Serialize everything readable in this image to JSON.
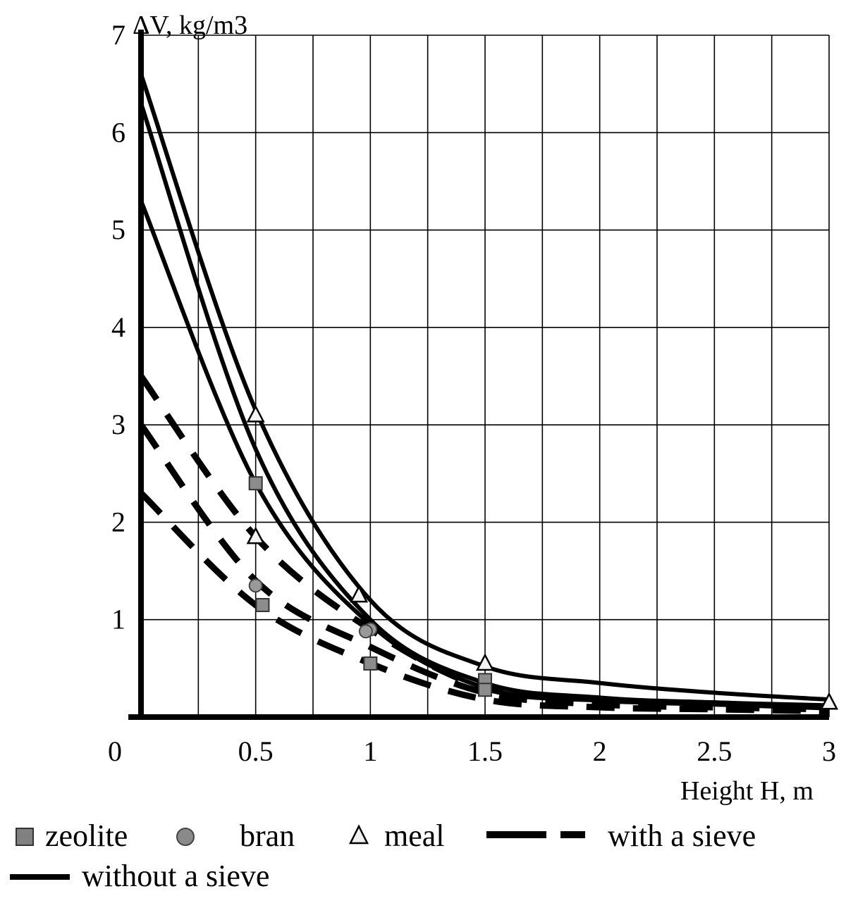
{
  "chart_data": {
    "type": "line",
    "title": "",
    "xlabel": "Height H, m",
    "ylabel": "ΔV, kg/m3",
    "xlim": [
      0,
      3
    ],
    "ylim": [
      0,
      7
    ],
    "grid": true,
    "x_ticks": [
      "0",
      "0.5",
      "1",
      "1.5",
      "2",
      "2.5",
      "3"
    ],
    "y_ticks": [
      "1",
      "2",
      "3",
      "4",
      "5",
      "6",
      "7"
    ],
    "legend_position": "bottom",
    "legend": {
      "zeolite": "zeolite",
      "bran": "bran",
      "meal": "meal",
      "with_sieve": "with a sieve",
      "without_sieve": "without a sieve"
    },
    "series": [
      {
        "name": "without a sieve",
        "material": "meal",
        "style": "solid",
        "x": [
          0,
          0.5,
          1,
          1.5,
          2,
          2.5,
          3
        ],
        "y": [
          6.6,
          3.15,
          1.2,
          0.52,
          0.35,
          0.25,
          0.18
        ]
      },
      {
        "name": "without a sieve",
        "material": "bran",
        "style": "solid",
        "x": [
          0,
          0.5,
          1,
          1.5,
          2,
          2.5,
          3
        ],
        "y": [
          6.3,
          2.75,
          1.0,
          0.35,
          0.2,
          0.15,
          0.12
        ]
      },
      {
        "name": "without a sieve",
        "material": "zeolite",
        "style": "solid",
        "x": [
          0,
          0.5,
          1,
          1.5,
          2,
          2.5,
          3
        ],
        "y": [
          5.3,
          2.4,
          0.95,
          0.3,
          0.18,
          0.13,
          0.1
        ]
      },
      {
        "name": "with a sieve",
        "material": "meal",
        "style": "dashed",
        "x": [
          0,
          0.5,
          1,
          1.5,
          2,
          2.5,
          3
        ],
        "y": [
          3.5,
          1.85,
          0.9,
          0.3,
          0.18,
          0.14,
          0.1
        ]
      },
      {
        "name": "with a sieve",
        "material": "bran",
        "style": "dashed",
        "x": [
          0,
          0.5,
          1,
          1.5,
          2,
          2.5,
          3
        ],
        "y": [
          3.0,
          1.4,
          0.72,
          0.25,
          0.13,
          0.1,
          0.08
        ]
      },
      {
        "name": "with a sieve",
        "material": "zeolite",
        "style": "dashed",
        "x": [
          0,
          0.5,
          1,
          1.5,
          2,
          2.5,
          3
        ],
        "y": [
          2.3,
          1.15,
          0.55,
          0.18,
          0.1,
          0.08,
          0.06
        ]
      }
    ],
    "points": [
      {
        "material": "meal",
        "marker": "triangle",
        "x": 0.5,
        "y": 3.1
      },
      {
        "material": "meal",
        "marker": "triangle",
        "x": 0.5,
        "y": 1.85
      },
      {
        "material": "meal",
        "marker": "triangle",
        "x": 0.95,
        "y": 1.25
      },
      {
        "material": "meal",
        "marker": "triangle",
        "x": 1.5,
        "y": 0.55
      },
      {
        "material": "meal",
        "marker": "triangle",
        "x": 3.0,
        "y": 0.15
      },
      {
        "material": "zeolite",
        "marker": "square",
        "x": 0.5,
        "y": 2.4
      },
      {
        "material": "zeolite",
        "marker": "square",
        "x": 0.53,
        "y": 1.15
      },
      {
        "material": "zeolite",
        "marker": "square",
        "x": 1.0,
        "y": 0.55
      },
      {
        "material": "zeolite",
        "marker": "square",
        "x": 1.5,
        "y": 0.38
      },
      {
        "material": "zeolite",
        "marker": "square",
        "x": 1.5,
        "y": 0.28
      },
      {
        "material": "bran",
        "marker": "circle",
        "x": 0.5,
        "y": 1.35
      },
      {
        "material": "bran",
        "marker": "circle",
        "x": 1.0,
        "y": 0.9
      },
      {
        "material": "bran",
        "marker": "circle",
        "x": 0.98,
        "y": 0.88
      }
    ]
  }
}
